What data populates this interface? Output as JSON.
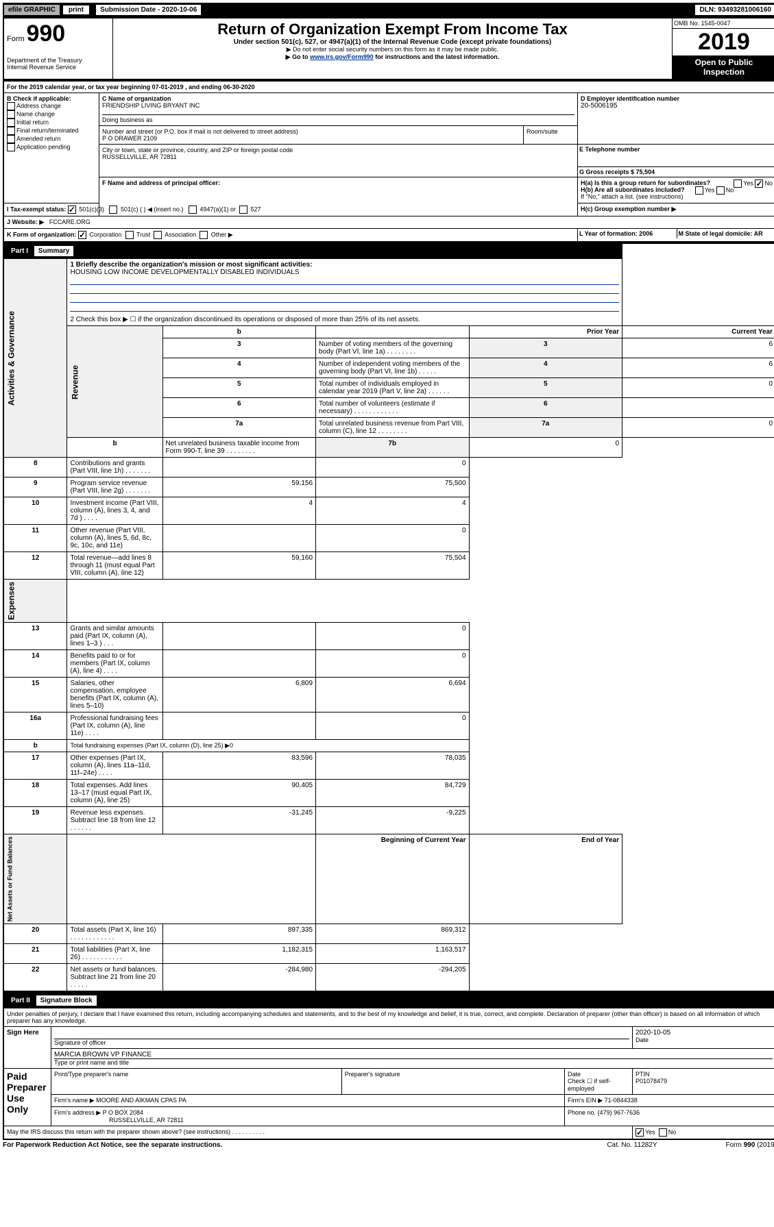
{
  "topbar": {
    "efile": "efile GRAPHIC",
    "print": "print",
    "submission_label": "Submission Date - 2020-10-06",
    "dln": "DLN: 93493281006160"
  },
  "header": {
    "form_label": "Form",
    "form_number": "990",
    "dept": "Department of the Treasury\nInternal Revenue Service",
    "title": "Return of Organization Exempt From Income Tax",
    "subtitle": "Under section 501(c), 527, or 4947(a)(1) of the Internal Revenue Code (except private foundations)",
    "note1": "▶ Do not enter social security numbers on this form as it may be made public.",
    "note2": "▶ Go to www.irs.gov/Form990 for instructions and the latest information.",
    "omb": "OMB No. 1545-0047",
    "year": "2019",
    "open_public": "Open to Public Inspection"
  },
  "sectionA": {
    "period": "For the 2019 calendar year, or tax year beginning 07-01-2019    , and ending 06-30-2020",
    "b_label": "B Check if applicable:",
    "b_items": [
      "Address change",
      "Name change",
      "Initial return",
      "Final return/terminated",
      "Amended return",
      "Application pending"
    ],
    "c_name_label": "C Name of organization",
    "c_name": "FRIENDSHIP LIVING BRYANT INC",
    "dba_label": "Doing business as",
    "addr_label": "Number and street (or P.O. box if mail is not delivered to street address)",
    "room_label": "Room/suite",
    "addr": "P O DRAWER 2109",
    "city_label": "City or town, state or province, country, and ZIP or foreign postal code",
    "city": "RUSSELLVILLE, AR  72811",
    "d_ein_label": "D Employer identification number",
    "d_ein": "20-5006195",
    "e_tel_label": "E Telephone number",
    "g_gross_label": "G Gross receipts $ 75,504",
    "f_label": "F  Name and address of principal officer:",
    "ha_label": "H(a)  Is this a group return for subordinates?",
    "hb_label": "H(b)  Are all subordinates included?",
    "hb_note": "If \"No,\" attach a list. (see instructions)",
    "hc_label": "H(c)  Group exemption number ▶",
    "yes": "Yes",
    "no": "No",
    "i_label": "I    Tax-exempt status:",
    "i_501c3": "501(c)(3)",
    "i_501c": "501(c) (  ) ◀ (insert no.)",
    "i_4947": "4947(a)(1) or",
    "i_527": "527",
    "j_label": "J   Website: ▶",
    "j_site": "FCCARE.ORG",
    "k_label": "K Form of organization:",
    "k_corp": "Corporation",
    "k_trust": "Trust",
    "k_assoc": "Association",
    "k_other": "Other ▶",
    "l_label": "L Year of formation: 2006",
    "m_label": "M State of legal domicile: AR"
  },
  "part1": {
    "header": "Part I",
    "title": "Summary",
    "side_label_1": "Activities & Governance",
    "side_label_2": "Revenue",
    "side_label_3": "Expenses",
    "side_label_4": "Net Assets or Fund Balances",
    "line1_label": "1  Briefly describe the organization's mission or most significant activities:",
    "line1_text": "HOUSING LOW INCOME DEVELOPMENTALLY DISABLED INDIVIDUALS",
    "line2_label": "2   Check this box ▶ ☐  if the organization discontinued its operations or disposed of more than 25% of its net assets.",
    "rows_gov": [
      {
        "n": "3",
        "label": "Number of voting members of the governing body (Part VI, line 1a)   .   .   .   .   .   .   .   .",
        "c": "3",
        "v": "6"
      },
      {
        "n": "4",
        "label": "Number of independent voting members of the governing body (Part VI, line 1b)  .   .   .   .   .",
        "c": "4",
        "v": "6"
      },
      {
        "n": "5",
        "label": "Total number of individuals employed in calendar year 2019 (Part V, line 2a)   .   .   .   .   .   .",
        "c": "5",
        "v": "0"
      },
      {
        "n": "6",
        "label": "Total number of volunteers (estimate if necessary)   .   .   .   .   .   .   .   .   .   .   .   .",
        "c": "6",
        "v": ""
      },
      {
        "n": "7a",
        "label": "Total unrelated business revenue from Part VIII, column (C), line 12  .   .   .   .   .   .   .   .",
        "c": "7a",
        "v": "0"
      },
      {
        "n": "b",
        "label": "Net unrelated business taxable income from Form 990-T, line 39    .   .   .   .   .   .   .   .",
        "c": "7b",
        "v": "0"
      }
    ],
    "col_prior": "Prior Year",
    "col_current": "Current Year",
    "rows_rev": [
      {
        "n": "8",
        "label": "Contributions and grants (Part VIII, line 1h)  .   .   .   .   .   .   .",
        "p": "",
        "c": "0"
      },
      {
        "n": "9",
        "label": "Program service revenue (Part VIII, line 2g)   .   .   .   .   .   .   .",
        "p": "59,156",
        "c": "75,500"
      },
      {
        "n": "10",
        "label": "Investment income (Part VIII, column (A), lines 3, 4, and 7d )  .   .   .   .",
        "p": "4",
        "c": "4"
      },
      {
        "n": "11",
        "label": "Other revenue (Part VIII, column (A), lines 5, 6d, 8c, 9c, 10c, and 11e)",
        "p": "",
        "c": "0"
      },
      {
        "n": "12",
        "label": "Total revenue—add lines 8 through 11 (must equal Part VIII, column (A), line 12)",
        "p": "59,160",
        "c": "75,504"
      }
    ],
    "rows_exp": [
      {
        "n": "13",
        "label": "Grants and similar amounts paid (Part IX, column (A), lines 1–3 )  .   .   .",
        "p": "",
        "c": "0"
      },
      {
        "n": "14",
        "label": "Benefits paid to or for members (Part IX, column (A), line 4)  .   .   .   .",
        "p": "",
        "c": "0"
      },
      {
        "n": "15",
        "label": "Salaries, other compensation, employee benefits (Part IX, column (A), lines 5–10)",
        "p": "6,809",
        "c": "6,694"
      },
      {
        "n": "16a",
        "label": "Professional fundraising fees (Part IX, column (A), line 11e)  .   .   .   .",
        "p": "",
        "c": "0"
      },
      {
        "n": "b",
        "label": "Total fundraising expenses (Part IX, column (D), line 25) ▶0",
        "p": "",
        "c": "",
        "span": true
      },
      {
        "n": "17",
        "label": "Other expenses (Part IX, column (A), lines 11a–11d, 11f–24e)  .   .   .   .",
        "p": "83,596",
        "c": "78,035"
      },
      {
        "n": "18",
        "label": "Total expenses. Add lines 13–17 (must equal Part IX, column (A), line 25)",
        "p": "90,405",
        "c": "84,729"
      },
      {
        "n": "19",
        "label": "Revenue less expenses. Subtract line 18 from line 12  .   .   .   .   .   .",
        "p": "-31,245",
        "c": "-9,225"
      }
    ],
    "col_begin": "Beginning of Current Year",
    "col_end": "End of Year",
    "rows_net": [
      {
        "n": "20",
        "label": "Total assets (Part X, line 16)  .   .   .   .   .   .   .   .   .   .   .   .",
        "p": "897,335",
        "c": "869,312"
      },
      {
        "n": "21",
        "label": "Total liabilities (Part X, line 26)  .   .   .   .   .   .   .   .   .   .   .",
        "p": "1,182,315",
        "c": "1,163,517"
      },
      {
        "n": "22",
        "label": "Net assets or fund balances. Subtract line 21 from line 20  .   .   .   .   .",
        "p": "-284,980",
        "c": "-294,205"
      }
    ]
  },
  "part2": {
    "header": "Part II",
    "title": "Signature Block",
    "decl": "Under penalties of perjury, I declare that I have examined this return, including accompanying schedules and statements, and to the best of my knowledge and belief, it is true, correct, and complete. Declaration of preparer (other than officer) is based on all information of which preparer has any knowledge.",
    "sign_here": "Sign Here",
    "sig_officer": "Signature of officer",
    "date_label": "Date",
    "date": "2020-10-05",
    "name_title": "MARCIA BROWN  VP FINANCE",
    "type_name": "Type or print name and title",
    "paid": "Paid Preparer Use Only",
    "prep_name_label": "Print/Type preparer's name",
    "prep_sig_label": "Preparer's signature",
    "check_self": "Check ☐ if self-employed",
    "ptin_label": "PTIN",
    "ptin": "P01078479",
    "firm_name_label": "Firm's name    ▶",
    "firm_name": "MOORE AND AIKMAN CPAS PA",
    "firm_ein_label": "Firm's EIN ▶",
    "firm_ein": "71-0844338",
    "firm_addr_label": "Firm's address ▶",
    "firm_addr": "P O BOX 2084",
    "firm_city": "RUSSELLVILLE, AR  72811",
    "phone_label": "Phone no.",
    "phone": "(479) 967-7636",
    "discuss": "May the IRS discuss this return with the preparer shown above? (see instructions)   .   .   .   .   .   .   .   .   .   .",
    "footer1": "For Paperwork Reduction Act Notice, see the separate instructions.",
    "footer2": "Cat. No. 11282Y",
    "footer3": "Form 990 (2019)"
  }
}
